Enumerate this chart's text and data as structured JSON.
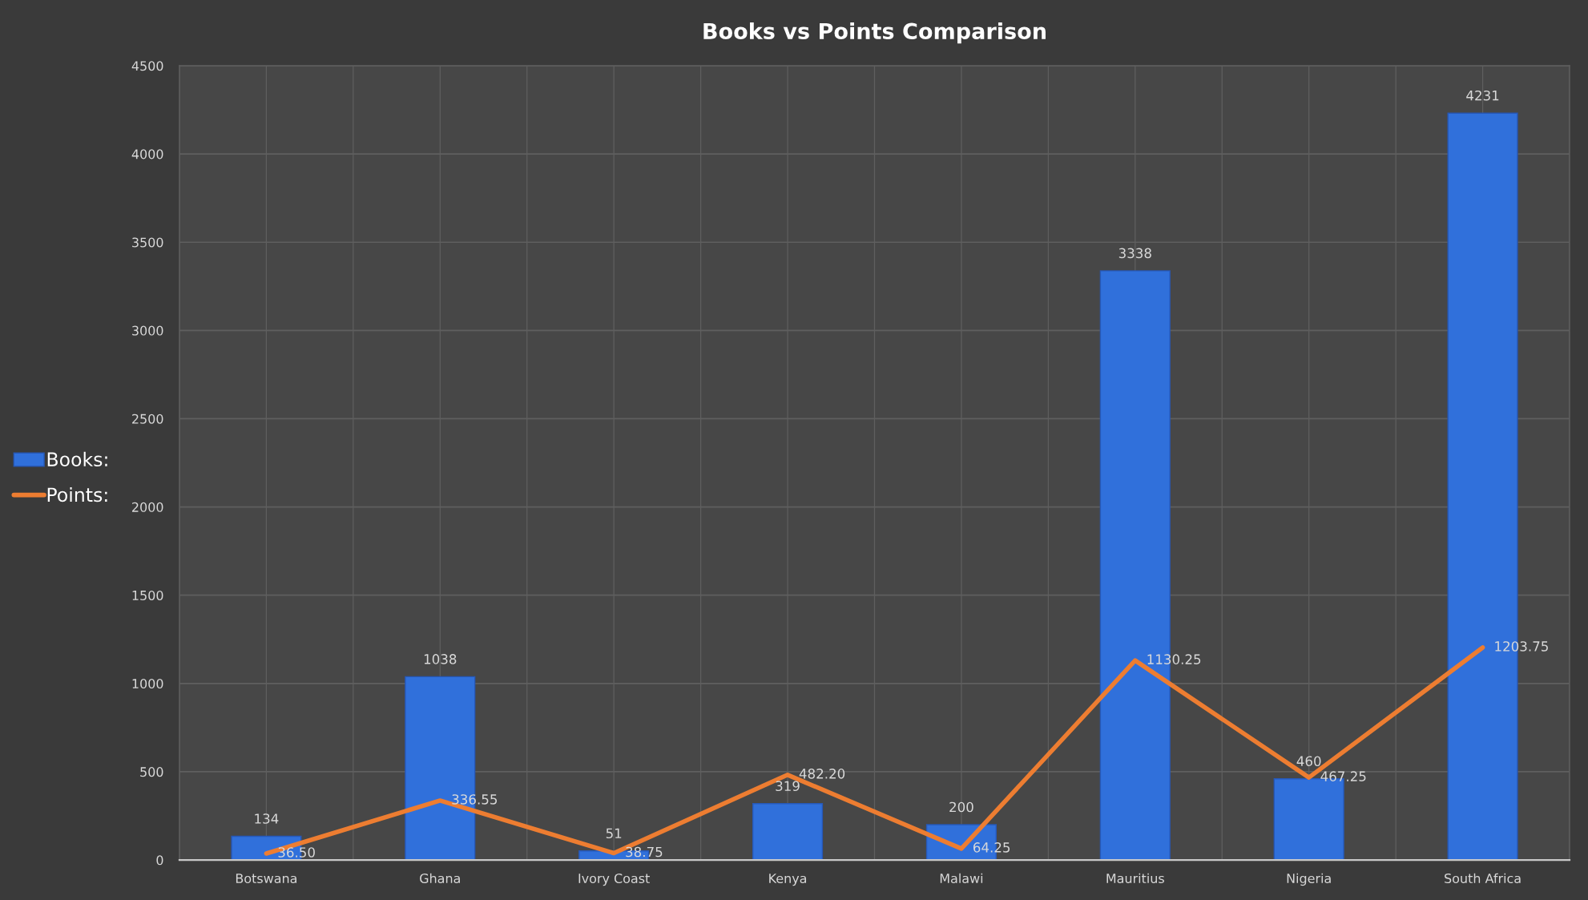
{
  "chart_data": {
    "type": "bar",
    "title": "Books vs Points Comparison",
    "categories": [
      "Botswana",
      "Ghana",
      "Ivory Coast",
      "Kenya",
      "Malawi",
      "Mauritius",
      "Nigeria",
      "South Africa"
    ],
    "series": [
      {
        "name": "Books:",
        "color": "#3070db",
        "values": [
          134,
          1038,
          51,
          319,
          200,
          3338,
          460,
          4231
        ],
        "value_labels": [
          "134",
          "1038",
          "51",
          "319",
          "200",
          "3338",
          "460",
          "4231"
        ]
      },
      {
        "name": "Points:",
        "type": "line",
        "color": "#ed7d31",
        "line_style": "solid",
        "values": [
          36.5,
          336.55,
          38.75,
          482.2,
          64.25,
          1130.25,
          467.25,
          1203.75
        ],
        "value_labels": [
          "36.50",
          "336.55",
          "38.75",
          "482.20",
          "64.25",
          "1130.25",
          "467.25",
          "1203.75"
        ]
      }
    ],
    "ylim": [
      0,
      4500
    ],
    "yticks": [
      0,
      500,
      1000,
      1500,
      2000,
      2500,
      3000,
      3500,
      4000,
      4500
    ],
    "grid": true,
    "legend": "left"
  }
}
